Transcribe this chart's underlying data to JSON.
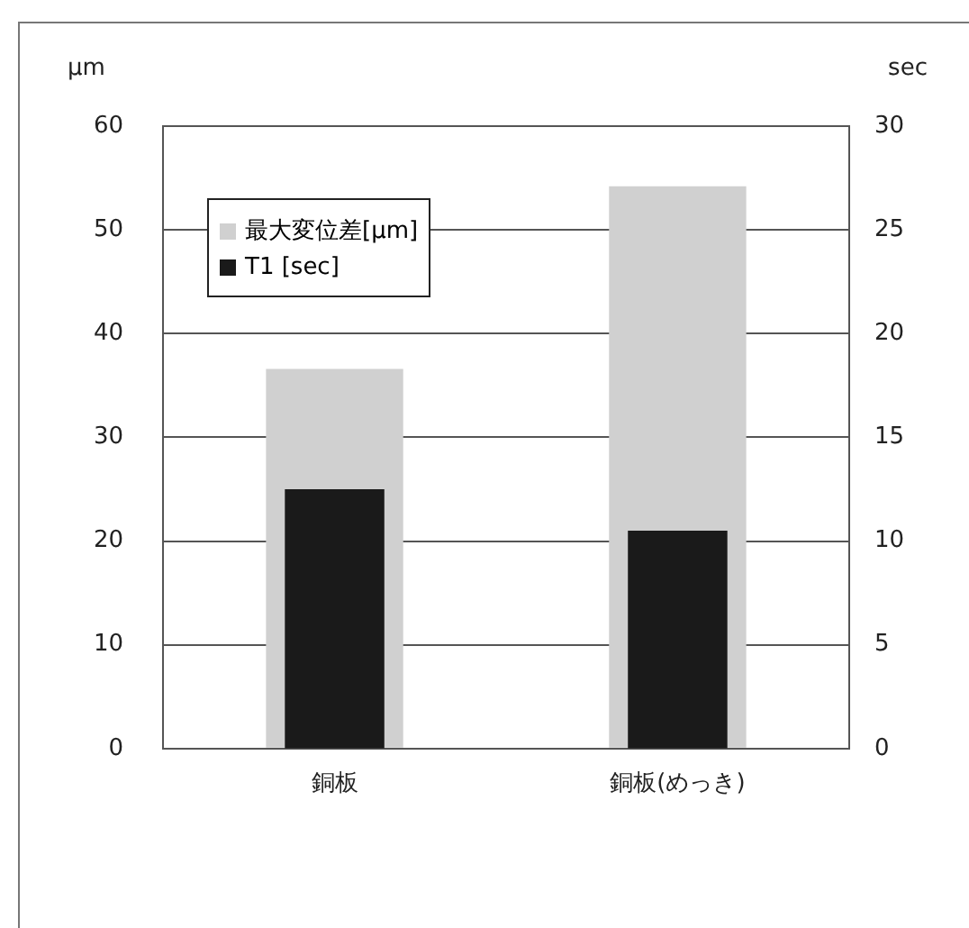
{
  "chart_data": {
    "type": "bar",
    "ylabel": "µm",
    "y2label": "sec",
    "categories": [
      "銅板",
      "銅板(めっき)"
    ],
    "series": [
      {
        "name": "最大変位差[μm]",
        "color": "#d0d0d0",
        "values": [
          36.6,
          54.2
        ]
      },
      {
        "name": "T1 [sec]",
        "color": "#1a1a1a",
        "values": [
          12.5,
          10.5
        ],
        "axis": "y2"
      }
    ],
    "ylim": [
      0,
      60
    ],
    "yticks": [
      0,
      10,
      20,
      30,
      40,
      50,
      60
    ],
    "y2lim": [
      0,
      30
    ],
    "y2ticks": [
      0,
      5,
      10,
      15,
      20,
      25,
      30
    ],
    "grid": "y",
    "legend": "top left"
  }
}
